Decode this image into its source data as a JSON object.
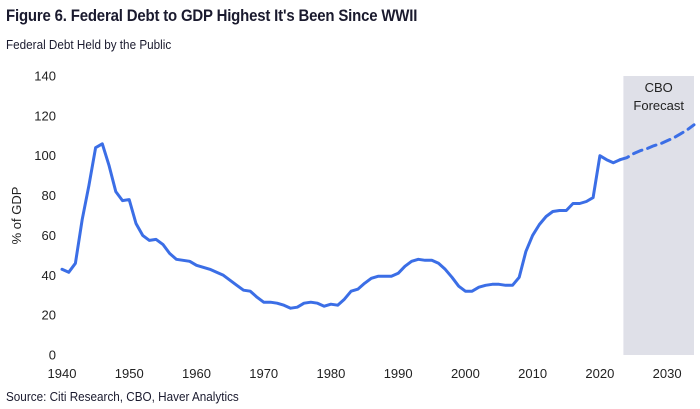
{
  "header": {
    "title": "Figure 6. Federal Debt to GDP Highest It's Been Since WWII",
    "subtitle": "Federal Debt Held by the Public"
  },
  "footer": {
    "source": "Source: Citi Research, CBO, Haver Analytics"
  },
  "colors": {
    "series": "#3b6ee6",
    "forecast_shade": "#dfe0e8"
  },
  "chart_data": {
    "type": "line",
    "title": "Figure 6. Federal Debt to GDP Highest It's Been Since WWII",
    "subtitle": "Federal Debt Held by the Public",
    "xlabel": "",
    "ylabel": "% of GDP",
    "xlim": [
      1940,
      2034
    ],
    "ylim": [
      0,
      140
    ],
    "x_ticks": [
      1940,
      1950,
      1960,
      1970,
      1980,
      1990,
      2000,
      2010,
      2020,
      2030
    ],
    "y_ticks": [
      0,
      20,
      40,
      60,
      80,
      100,
      120,
      140
    ],
    "grid": false,
    "forecast_region": {
      "start": 2023.5,
      "end": 2034,
      "label_line1": "CBO",
      "label_line2": "Forecast"
    },
    "series": [
      {
        "style": "solid",
        "x": [
          1940,
          1941,
          1942,
          1943,
          1944,
          1945,
          1946,
          1947,
          1948,
          1949,
          1950,
          1951,
          1952,
          1953,
          1954,
          1955,
          1956,
          1957,
          1958,
          1959,
          1960,
          1961,
          1962,
          1963,
          1964,
          1965,
          1966,
          1967,
          1968,
          1969,
          1970,
          1971,
          1972,
          1973,
          1974,
          1975,
          1976,
          1977,
          1978,
          1979,
          1980,
          1981,
          1982,
          1983,
          1984,
          1985,
          1986,
          1987,
          1988,
          1989,
          1990,
          1991,
          1992,
          1993,
          1994,
          1995,
          1996,
          1997,
          1998,
          1999,
          2000,
          2001,
          2002,
          2003,
          2004,
          2005,
          2006,
          2007,
          2008,
          2009,
          2010,
          2011,
          2012,
          2013,
          2014,
          2015,
          2016,
          2017,
          2018,
          2019,
          2020,
          2021,
          2022,
          2023
        ],
        "values": [
          43,
          41.5,
          46,
          68,
          85,
          104,
          106,
          95,
          82,
          77.5,
          78,
          66,
          60,
          57.5,
          58,
          55.5,
          51,
          48,
          47.5,
          47,
          45,
          44,
          43,
          41.5,
          40,
          37.5,
          35,
          32.5,
          32,
          29,
          26.5,
          26.5,
          26,
          25,
          23.5,
          24,
          26,
          26.5,
          26,
          24.5,
          25.5,
          25,
          28,
          32,
          33,
          36,
          38.5,
          39.5,
          39.5,
          39.5,
          41,
          44.5,
          47,
          48,
          47.5,
          47.5,
          46,
          43,
          39,
          34.5,
          32,
          32,
          34,
          35,
          35.5,
          35.5,
          35,
          35,
          39,
          52,
          60,
          65.5,
          69.5,
          72,
          72.5,
          72.5,
          76,
          76,
          77,
          79,
          100,
          98,
          96.5,
          98
        ]
      },
      {
        "style": "dashed",
        "x": [
          2023,
          2024,
          2025,
          2026,
          2027,
          2028,
          2029,
          2030,
          2031,
          2032,
          2033,
          2034
        ],
        "values": [
          98,
          99,
          101,
          102.5,
          103.5,
          105,
          106,
          107.5,
          109,
          111,
          113,
          115.5
        ]
      }
    ]
  }
}
